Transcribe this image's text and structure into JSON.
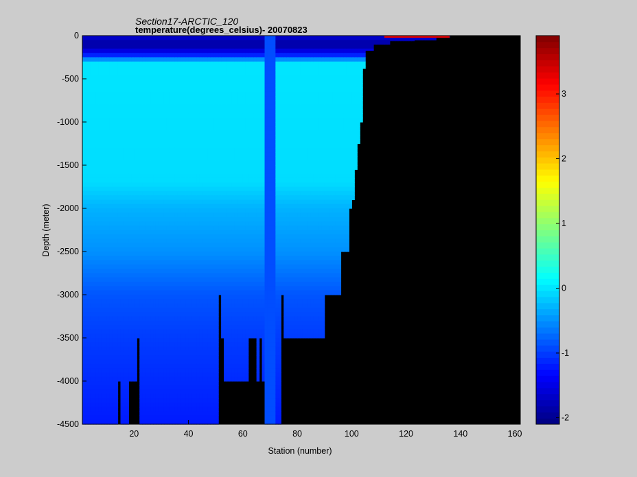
{
  "chart_data": {
    "type": "heatmap",
    "title": "Section17-ARCTIC_120",
    "subtitle": "temperature(degrees_celsius)- 20070823",
    "xlabel": "Station (number)",
    "ylabel": "Depth (meter)",
    "xlim": [
      1,
      162
    ],
    "ylim": [
      -4500,
      0
    ],
    "x_ticks": [
      "20",
      "40",
      "60",
      "80",
      "100",
      "120",
      "140",
      "160"
    ],
    "y_ticks": [
      "0",
      "-500",
      "-1000",
      "-1500",
      "-2000",
      "-2500",
      "-3000",
      "-3500",
      "-4000",
      "-4500"
    ],
    "colorbar": {
      "ticks": [
        "-2",
        "-1",
        "0",
        "1",
        "2",
        "3"
      ],
      "range": [
        -2.1,
        3.9
      ],
      "colormap": "jet"
    },
    "no_data_color": "#000000",
    "bottom_depth": [
      [
        1,
        -4500
      ],
      [
        13,
        -4500
      ],
      [
        14,
        -4000
      ],
      [
        15,
        -4500
      ],
      [
        18,
        -4000
      ],
      [
        21,
        -3500
      ],
      [
        22,
        -4500
      ],
      [
        50,
        -4500
      ],
      [
        51,
        -3000
      ],
      [
        52,
        -3500
      ],
      [
        53,
        -4000
      ],
      [
        62,
        -3500
      ],
      [
        64,
        -3500
      ],
      [
        65,
        -4000
      ],
      [
        66,
        -3500
      ],
      [
        67,
        -4000
      ],
      [
        68,
        -4500
      ],
      [
        73,
        -4500
      ],
      [
        74,
        -3000
      ],
      [
        75,
        -3500
      ],
      [
        89,
        -3500
      ],
      [
        90,
        -3000
      ],
      [
        95,
        -3000
      ],
      [
        96,
        -2500
      ],
      [
        98,
        -2500
      ],
      [
        99,
        -2000
      ],
      [
        100,
        -1900
      ],
      [
        101,
        -1550
      ],
      [
        102,
        -1250
      ],
      [
        103,
        -1000
      ],
      [
        104,
        -380
      ],
      [
        105,
        -170
      ],
      [
        108,
        -100
      ],
      [
        114,
        -60
      ],
      [
        123,
        -50
      ],
      [
        131,
        -20
      ],
      [
        136,
        0
      ],
      [
        162,
        0
      ]
    ],
    "profile": {
      "depths": [
        0,
        -100,
        -150,
        -200,
        -250,
        -300,
        -1700,
        -2000,
        -2500,
        -3000,
        -3500,
        -4000,
        -4500
      ],
      "temperatures": [
        -1.6,
        -1.9,
        -1.75,
        -1.3,
        -1.0,
        0.0,
        -0.05,
        -0.3,
        -0.5,
        -0.85,
        -1.0,
        -1.1,
        -1.2
      ]
    },
    "anomaly_column": {
      "x": [
        68,
        72
      ],
      "temperature": -0.9
    },
    "surface_warm_segment": {
      "x": [
        112,
        136
      ],
      "temperature": 3.3
    }
  }
}
